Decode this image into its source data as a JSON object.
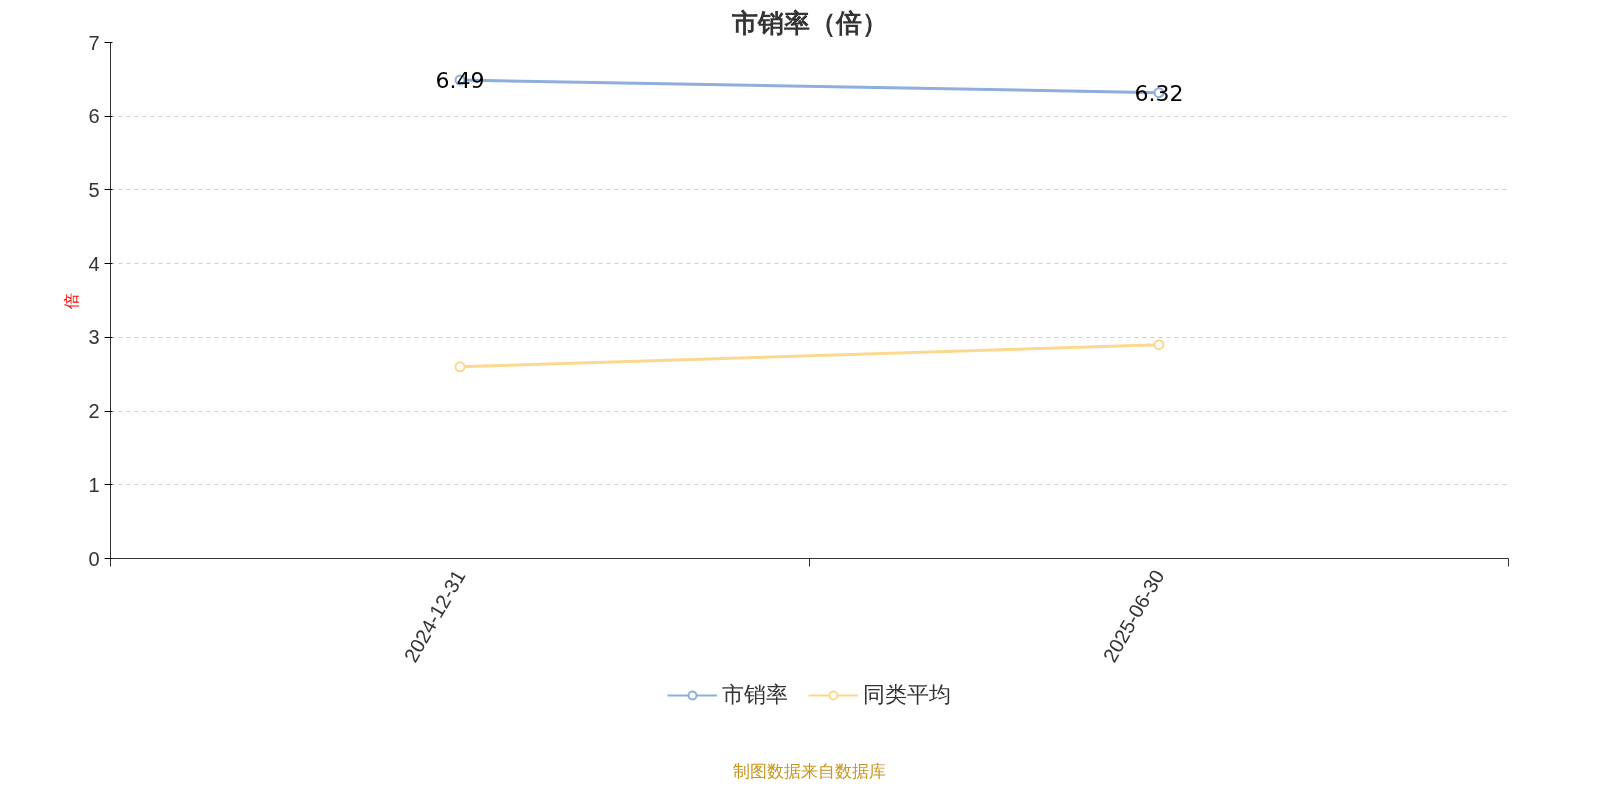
{
  "chart_data": {
    "type": "line",
    "title": "市销率（倍）",
    "ylabel": "倍",
    "categories": [
      "2024-12-31",
      "2025-06-30"
    ],
    "series": [
      {
        "name": "市销率",
        "color": "#8eaedb",
        "values": [
          6.49,
          6.32
        ],
        "data_labels": true
      },
      {
        "name": "同类平均",
        "color": "#fcd88f",
        "values": [
          2.6,
          2.9
        ]
      }
    ],
    "ylim": [
      0,
      7
    ],
    "yticks": [
      0,
      1,
      2,
      3,
      4,
      5,
      6,
      7
    ],
    "grid": "y",
    "legend": "bottom",
    "marker": "circle",
    "line_style": "solid",
    "annotations": [
      "制图数据来自数据库"
    ]
  }
}
